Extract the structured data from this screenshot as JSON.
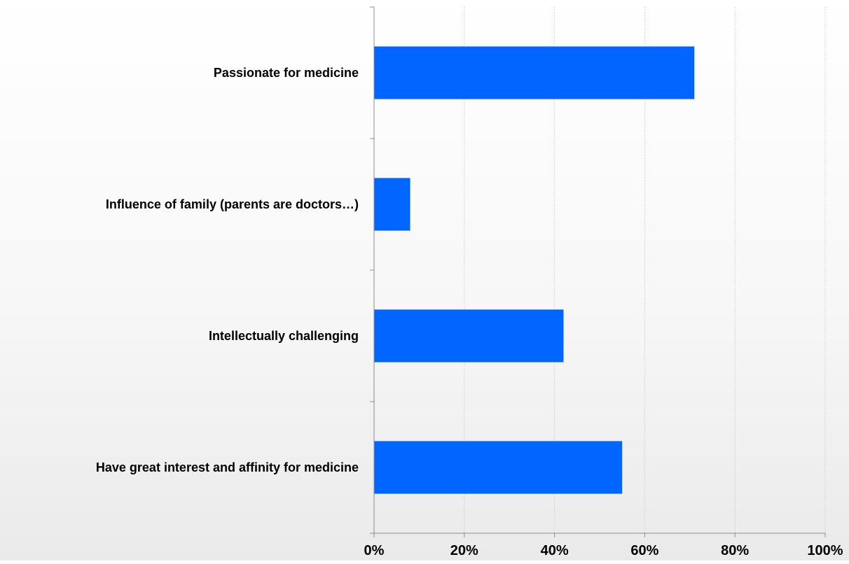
{
  "chart_data": {
    "type": "bar",
    "orientation": "horizontal",
    "categories": [
      "Passionate for medicine",
      "Influence of family (parents are doctors…)",
      "Intellectually challenging",
      "Have great interest and affinity for medicine"
    ],
    "values": [
      71,
      8,
      42,
      55
    ],
    "value_unit": "%",
    "xlim": [
      0,
      100
    ],
    "x_ticks": [
      "0%",
      "20%",
      "40%",
      "60%",
      "80%",
      "100%"
    ],
    "grid": "vertical dotted",
    "legend": "none",
    "colors": {
      "bar": "#0066ff",
      "axis": "#8c8c8c",
      "grid": "#bdbdbd"
    }
  }
}
